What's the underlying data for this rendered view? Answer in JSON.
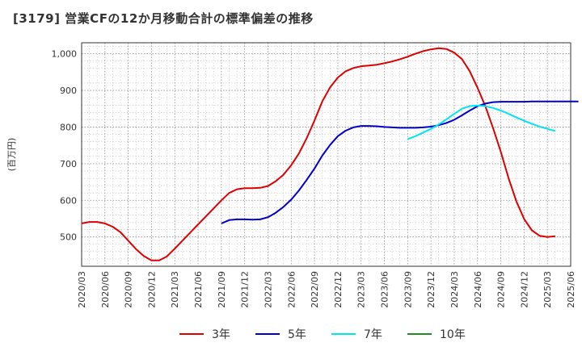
{
  "title": "[3179]  営業CFの12か月移動合計の標準偏差の推移",
  "chart_data": {
    "type": "line",
    "ylabel": "(百万円)",
    "ylim": [
      420,
      1030
    ],
    "yticks": [
      500,
      600,
      700,
      800,
      900,
      1000
    ],
    "ytick_labels": [
      "500",
      "600",
      "700",
      "800",
      "900",
      "1,000"
    ],
    "xticks": [
      "2020/03",
      "2020/06",
      "2020/09",
      "2020/12",
      "2021/03",
      "2021/06",
      "2021/09",
      "2021/12",
      "2022/03",
      "2022/06",
      "2022/09",
      "2022/12",
      "2023/03",
      "2023/06",
      "2023/09",
      "2023/12",
      "2024/03",
      "2024/06",
      "2024/09",
      "2024/12",
      "2025/03",
      "2025/06"
    ],
    "grid": true,
    "legend_position": "bottom",
    "series": [
      {
        "name": "3年",
        "color": "#dd0000",
        "start": "2020/03",
        "values": [
          537,
          541,
          541,
          537,
          528,
          513,
          490,
          467,
          448,
          436,
          436,
          447,
          468,
          490,
          512,
          534,
          556,
          578,
          600,
          620,
          630,
          633,
          633,
          634,
          639,
          652,
          670,
          696,
          728,
          770,
          818,
          870,
          908,
          935,
          952,
          961,
          966,
          968,
          970,
          974,
          979,
          985,
          992,
          1000,
          1007,
          1012,
          1015,
          1013,
          1003,
          985,
          952,
          907,
          857,
          797,
          732,
          660,
          597,
          549,
          518,
          503,
          500,
          502
        ]
      },
      {
        "name": "5年",
        "color": "#0000cc",
        "start": "2021/09",
        "values": [
          537,
          546,
          548,
          548,
          547,
          548,
          554,
          566,
          582,
          602,
          627,
          656,
          687,
          722,
          751,
          775,
          790,
          799,
          803,
          803,
          802,
          800,
          799,
          798,
          798,
          798,
          799,
          801,
          805,
          811,
          820,
          832,
          845,
          857,
          864,
          868,
          869,
          869,
          869,
          869,
          870,
          870,
          870,
          870,
          870,
          870,
          870
        ]
      },
      {
        "name": "7年",
        "color": "#00e5ee",
        "start": "2023/09",
        "values": [
          767,
          775,
          785,
          795,
          807,
          821,
          836,
          850,
          857,
          859,
          857,
          852,
          845,
          836,
          826,
          817,
          809,
          801,
          795,
          789
        ]
      },
      {
        "name": "10年",
        "color": "#228b22",
        "start": "2025/03",
        "values": []
      }
    ]
  }
}
